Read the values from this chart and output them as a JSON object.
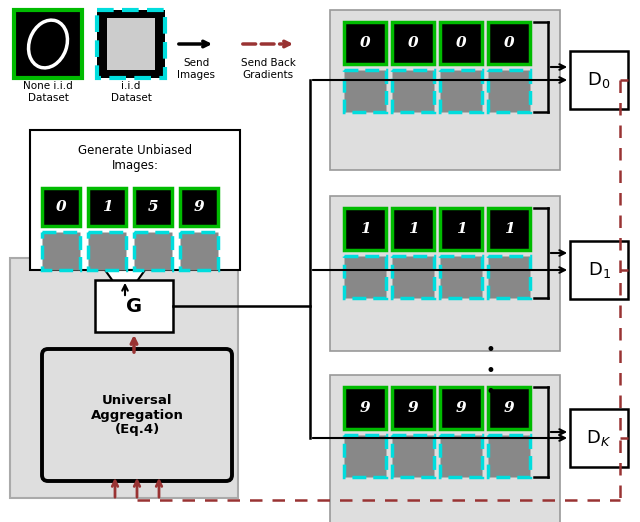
{
  "fig_width": 6.4,
  "fig_height": 5.22,
  "bg_color": "#ffffff",
  "light_gray": "#dedede",
  "green": "#00bb00",
  "cyan": "#00dddd",
  "red_dashed": "#993333",
  "img_digit_labels_row1": [
    "0",
    "1",
    "5",
    "9"
  ],
  "client0_digits": [
    "0",
    "0",
    "0",
    "0"
  ],
  "client1_digits": [
    "1",
    "1",
    "1",
    "1"
  ],
  "clientK_digits": [
    "9",
    "9",
    "9",
    "9"
  ]
}
